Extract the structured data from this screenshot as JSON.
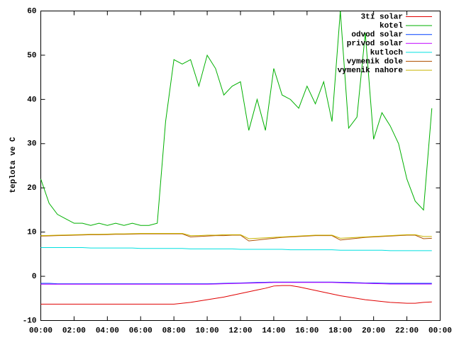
{
  "chart_data": {
    "type": "line",
    "y_label": "teplota ve C",
    "x": [
      0,
      0.5,
      1,
      1.5,
      2,
      2.5,
      3,
      3.5,
      4,
      4.5,
      5,
      5.5,
      6,
      6.5,
      7,
      7.5,
      8,
      8.5,
      9,
      9.5,
      10,
      10.5,
      11,
      11.5,
      12,
      12.5,
      13,
      13.5,
      14,
      14.5,
      15,
      15.5,
      16,
      16.5,
      17,
      17.5,
      18,
      18.5,
      19,
      19.5,
      20,
      20.5,
      21,
      21.5,
      22,
      22.5,
      23,
      23.5
    ],
    "xlim": [
      0,
      24
    ],
    "xticks": [
      {
        "value": 0,
        "label": "00:00"
      },
      {
        "value": 2,
        "label": "02:00"
      },
      {
        "value": 4,
        "label": "04:00"
      },
      {
        "value": 6,
        "label": "06:00"
      },
      {
        "value": 8,
        "label": "08:00"
      },
      {
        "value": 10,
        "label": "10:00"
      },
      {
        "value": 12,
        "label": "12:00"
      },
      {
        "value": 14,
        "label": "14:00"
      },
      {
        "value": 16,
        "label": "16:00"
      },
      {
        "value": 18,
        "label": "18:00"
      },
      {
        "value": 20,
        "label": "20:00"
      },
      {
        "value": 22,
        "label": "22:00"
      },
      {
        "value": 24,
        "label": "00:00"
      }
    ],
    "ylim": [
      -10,
      60
    ],
    "yticks": [
      -10,
      0,
      10,
      20,
      30,
      40,
      50,
      60
    ],
    "legend": "top-right",
    "series": [
      {
        "name": "3ti solar",
        "color": "#e00000",
        "values": [
          -6.3,
          -6.3,
          -6.3,
          -6.3,
          -6.3,
          -6.3,
          -6.3,
          -6.3,
          -6.3,
          -6.3,
          -6.3,
          -6.3,
          -6.3,
          -6.3,
          -6.3,
          -6.3,
          -6.3,
          -6.1,
          -5.9,
          -5.6,
          -5.3,
          -5,
          -4.7,
          -4.3,
          -3.9,
          -3.5,
          -3.1,
          -2.7,
          -2.2,
          -2.1,
          -2.1,
          -2.4,
          -2.8,
          -3.2,
          -3.6,
          -4,
          -4.4,
          -4.7,
          -5,
          -5.3,
          -5.5,
          -5.7,
          -5.9,
          -6,
          -6.1,
          -6.1,
          -5.9,
          -5.8
        ]
      },
      {
        "name": "kotel",
        "color": "#00b000",
        "values": [
          22,
          16.5,
          14,
          13,
          12,
          12,
          11.5,
          12,
          11.5,
          12,
          11.5,
          12,
          11.5,
          11.5,
          12,
          35,
          49,
          48,
          49,
          43,
          50,
          47,
          41,
          43,
          44,
          33,
          40,
          33,
          47,
          41,
          40,
          38,
          43,
          39,
          44,
          35,
          60,
          33.5,
          36,
          55,
          31,
          37,
          34,
          30,
          22,
          17,
          15,
          38
        ]
      },
      {
        "name": "odvod solar",
        "color": "#0040ff",
        "values": [
          -1.6,
          -1.6,
          -1.7,
          -1.7,
          -1.7,
          -1.7,
          -1.7,
          -1.7,
          -1.7,
          -1.7,
          -1.7,
          -1.7,
          -1.7,
          -1.7,
          -1.7,
          -1.7,
          -1.7,
          -1.7,
          -1.7,
          -1.7,
          -1.7,
          -1.65,
          -1.6,
          -1.55,
          -1.5,
          -1.45,
          -1.4,
          -1.35,
          -1.3,
          -1.3,
          -1.3,
          -1.3,
          -1.3,
          -1.3,
          -1.3,
          -1.3,
          -1.35,
          -1.4,
          -1.45,
          -1.5,
          -1.5,
          -1.55,
          -1.6,
          -1.6,
          -1.6,
          -1.6,
          -1.6,
          -1.6
        ]
      },
      {
        "name": "privod solar",
        "color": "#c000ff",
        "values": [
          -1.8,
          -1.8,
          -1.8,
          -1.8,
          -1.8,
          -1.8,
          -1.8,
          -1.8,
          -1.8,
          -1.8,
          -1.8,
          -1.8,
          -1.8,
          -1.8,
          -1.8,
          -1.8,
          -1.8,
          -1.8,
          -1.8,
          -1.8,
          -1.8,
          -1.75,
          -1.7,
          -1.65,
          -1.6,
          -1.55,
          -1.5,
          -1.45,
          -1.4,
          -1.4,
          -1.4,
          -1.4,
          -1.4,
          -1.4,
          -1.4,
          -1.4,
          -1.45,
          -1.5,
          -1.55,
          -1.6,
          -1.65,
          -1.7,
          -1.75,
          -1.75,
          -1.75,
          -1.75,
          -1.75,
          -1.75
        ]
      },
      {
        "name": "kutloch",
        "color": "#00e0e0",
        "values": [
          6.5,
          6.5,
          6.5,
          6.5,
          6.5,
          6.5,
          6.4,
          6.4,
          6.4,
          6.4,
          6.4,
          6.4,
          6.3,
          6.3,
          6.3,
          6.3,
          6.3,
          6.3,
          6.2,
          6.2,
          6.2,
          6.2,
          6.2,
          6.2,
          6.1,
          6.1,
          6.1,
          6.1,
          6.1,
          6.1,
          6,
          6,
          6,
          6,
          6,
          6,
          5.9,
          5.9,
          5.9,
          5.9,
          5.9,
          5.9,
          5.8,
          5.8,
          5.8,
          5.8,
          5.8,
          5.8
        ]
      },
      {
        "name": "vymenik dole",
        "color": "#b05000",
        "values": [
          9.1,
          9.15,
          9.2,
          9.25,
          9.3,
          9.35,
          9.4,
          9.4,
          9.45,
          9.5,
          9.5,
          9.55,
          9.6,
          9.6,
          9.6,
          9.6,
          9.6,
          9.6,
          8.9,
          9,
          9.1,
          9.2,
          9.2,
          9.3,
          9.3,
          8,
          8.2,
          8.4,
          8.6,
          8.8,
          8.9,
          9,
          9.1,
          9.2,
          9.2,
          9.2,
          8.2,
          8.4,
          8.6,
          8.8,
          8.9,
          9,
          9.1,
          9.2,
          9.3,
          9.3,
          8.5,
          8.6
        ]
      },
      {
        "name": "vymenik nahore",
        "color": "#c8b400",
        "values": [
          9.2,
          9.25,
          9.3,
          9.35,
          9.4,
          9.45,
          9.5,
          9.5,
          9.55,
          9.6,
          9.6,
          9.65,
          9.7,
          9.7,
          9.7,
          9.7,
          9.7,
          9.7,
          9.2,
          9.2,
          9.3,
          9.3,
          9.4,
          9.4,
          9.4,
          8.5,
          8.6,
          8.7,
          8.8,
          8.9,
          9,
          9.1,
          9.2,
          9.3,
          9.3,
          9.3,
          8.6,
          8.7,
          8.8,
          8.9,
          9,
          9.1,
          9.2,
          9.3,
          9.4,
          9.4,
          9,
          9
        ]
      }
    ]
  }
}
